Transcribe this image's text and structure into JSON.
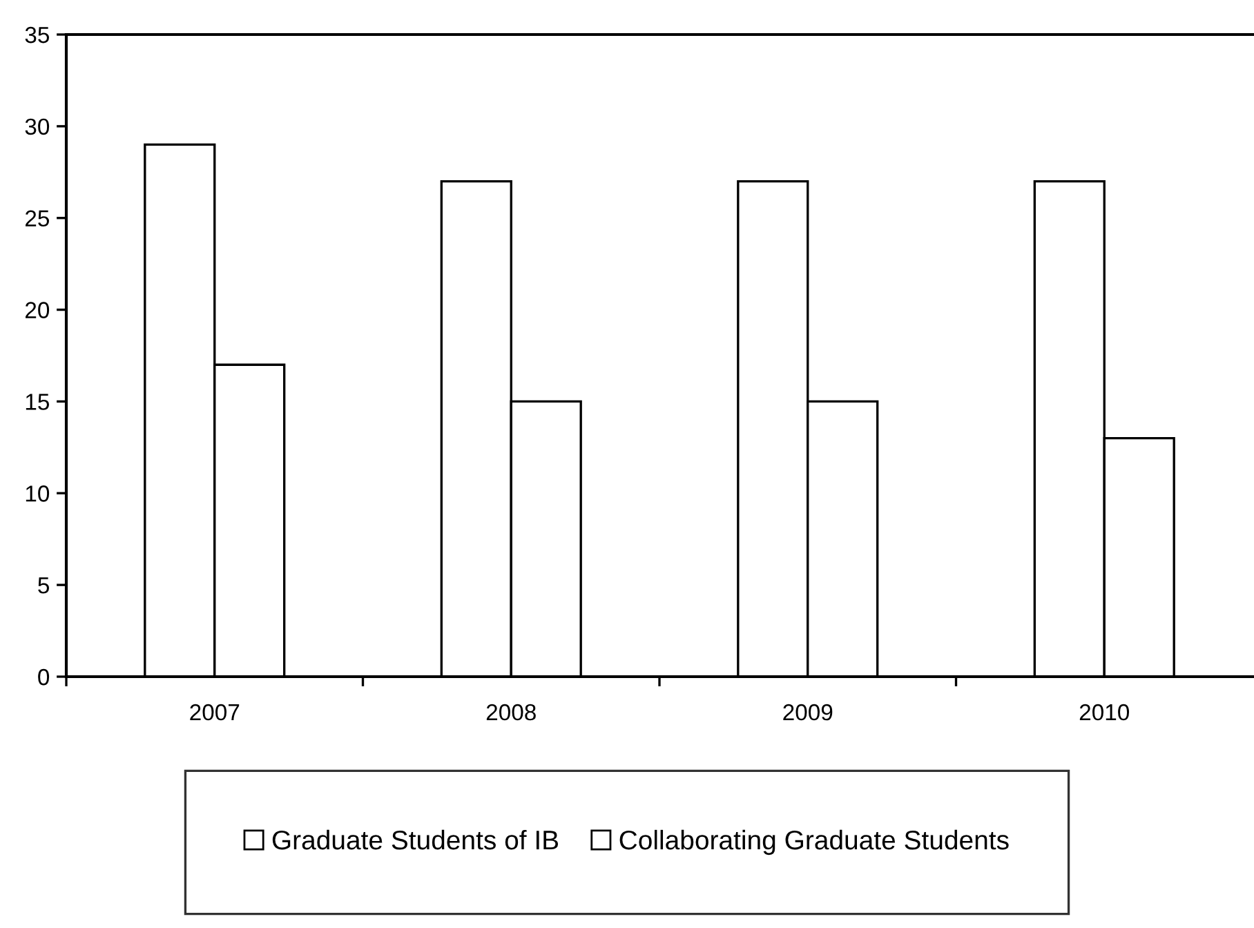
{
  "chart_data": {
    "type": "bar",
    "categories": [
      "2007",
      "2008",
      "2009",
      "2010"
    ],
    "series": [
      {
        "name": "Graduate Students of IB",
        "color": "#ffffff",
        "values": [
          29,
          27,
          27,
          27
        ]
      },
      {
        "name": "Collaborating Graduate Students",
        "color": "#ffffff",
        "values": [
          17,
          15,
          15,
          13
        ]
      }
    ],
    "ylim": [
      0,
      35
    ],
    "yticks": [
      0,
      5,
      10,
      15,
      20,
      25,
      30,
      35
    ],
    "grid": false,
    "legend": "bottom"
  }
}
